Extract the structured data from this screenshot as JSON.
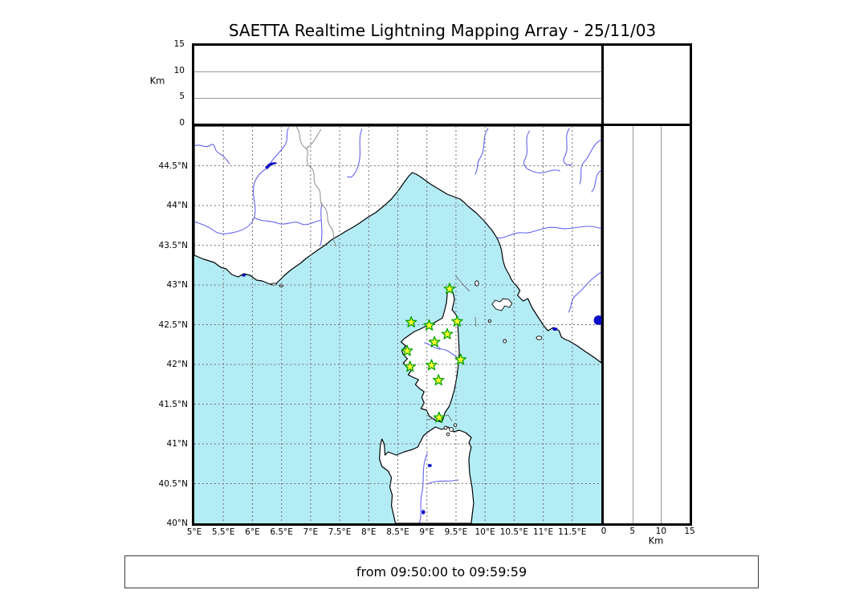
{
  "title": "SAETTA Realtime Lightning Mapping Array - 25/11/03",
  "status_bar": {
    "text": "from 09:50:00 to 09:59:59"
  },
  "altitude_axis": {
    "label": "Km",
    "range_km": [
      0,
      15
    ],
    "ticks": [
      {
        "value": 0,
        "label": "0"
      },
      {
        "value": 5,
        "label": "5"
      },
      {
        "value": 10,
        "label": "10"
      },
      {
        "value": 15,
        "label": "15"
      }
    ],
    "gridlines": [
      5,
      10
    ]
  },
  "map": {
    "lon_range": [
      5,
      12
    ],
    "lat_range": [
      40,
      45
    ],
    "lon_ticks": [
      {
        "value": 5,
        "label": "5°E"
      },
      {
        "value": 5.5,
        "label": "5.5°E"
      },
      {
        "value": 6,
        "label": "6°E"
      },
      {
        "value": 6.5,
        "label": "6.5°E"
      },
      {
        "value": 7,
        "label": "7°E"
      },
      {
        "value": 7.5,
        "label": "7.5°E"
      },
      {
        "value": 8,
        "label": "8°E"
      },
      {
        "value": 8.5,
        "label": "8.5°E"
      },
      {
        "value": 9,
        "label": "9°E"
      },
      {
        "value": 9.5,
        "label": "9.5°E"
      },
      {
        "value": 10,
        "label": "10°E"
      },
      {
        "value": 10.5,
        "label": "10.5°E"
      },
      {
        "value": 11,
        "label": "11°E"
      },
      {
        "value": 11.5,
        "label": "11.5°E"
      }
    ],
    "lat_ticks": [
      {
        "value": 44.5,
        "label": "44.5°N"
      },
      {
        "value": 44,
        "label": "44°N"
      },
      {
        "value": 43.5,
        "label": "43.5°N"
      },
      {
        "value": 43,
        "label": "43°N"
      },
      {
        "value": 42.5,
        "label": "42.5°N"
      },
      {
        "value": 42,
        "label": "42°N"
      },
      {
        "value": 41.5,
        "label": "41.5°N"
      },
      {
        "value": 41,
        "label": "41°N"
      },
      {
        "value": 40.5,
        "label": "40.5°N"
      },
      {
        "value": 40,
        "label": "40°N"
      }
    ],
    "lon_gridlines": [
      5.5,
      6,
      6.5,
      7,
      7.5,
      8,
      8.5,
      9,
      9.5,
      10,
      10.5,
      11,
      11.5
    ],
    "lat_gridlines": [
      40.5,
      41,
      41.5,
      42,
      42.5,
      43,
      43.5,
      44,
      44.5
    ],
    "stations": [
      {
        "lon": 9.39,
        "lat": 42.95
      },
      {
        "lon": 8.73,
        "lat": 42.53
      },
      {
        "lon": 9.04,
        "lat": 42.49
      },
      {
        "lon": 9.52,
        "lat": 42.54
      },
      {
        "lon": 9.35,
        "lat": 42.38
      },
      {
        "lon": 9.13,
        "lat": 42.28
      },
      {
        "lon": 8.66,
        "lat": 42.17
      },
      {
        "lon": 9.58,
        "lat": 42.06
      },
      {
        "lon": 9.08,
        "lat": 41.99
      },
      {
        "lon": 8.71,
        "lat": 41.97
      },
      {
        "lon": 9.2,
        "lat": 41.8
      },
      {
        "lon": 9.21,
        "lat": 41.33
      }
    ],
    "colors": {
      "sea": "#b4ecf6",
      "land": "#ffffff",
      "coastline": "#000000",
      "river": "#6363ee",
      "lake": "#0a0ac8",
      "border": "#8c8c8c",
      "grid": "#707070",
      "station_fill": "#ffff2e",
      "station_stroke": "#00a300"
    }
  }
}
